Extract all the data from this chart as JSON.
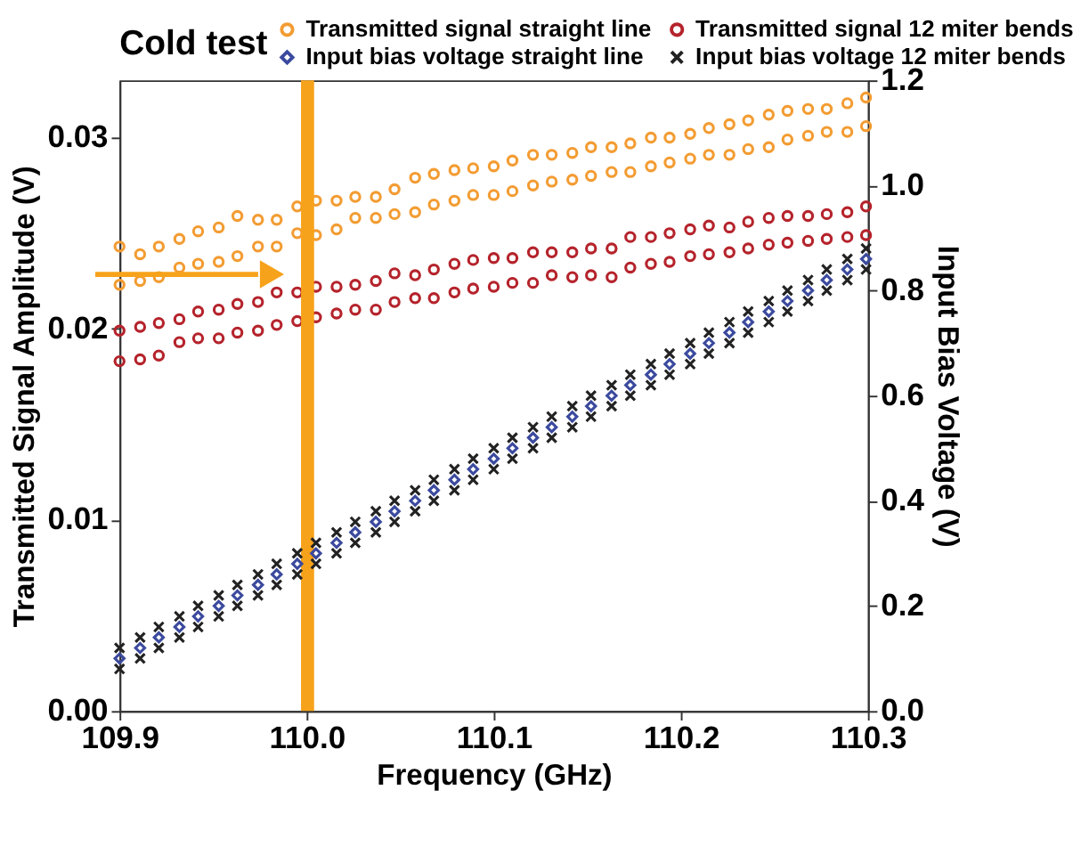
{
  "chart_data": {
    "type": "scatter",
    "xlabel": "Frequency (GHz)",
    "ylabel": "Transmitted Signal Amplitude (V)",
    "y2label": "Input Bias Voltage (V)",
    "legend_title": "Cold test",
    "xlim": [
      109.9,
      110.3
    ],
    "xticks": [
      109.9,
      {
        "value": 110.0,
        "label": "110.0"
      },
      110.1,
      110.2,
      110.3
    ],
    "ylim": [
      0,
      0.033
    ],
    "yticks": [
      {
        "value": 0,
        "label": "0.00"
      },
      0.01,
      0.02,
      0.03
    ],
    "y2lim": [
      0,
      1.2
    ],
    "y2ticks": [
      {
        "value": 0,
        "label": "0.0"
      },
      0.2,
      0.4,
      0.6,
      0.8,
      {
        "value": 1,
        "label": "1.0"
      },
      1.2
    ],
    "grid": false,
    "legend": "top",
    "bands": [
      {
        "axis": "x",
        "from": 109.997,
        "to": 110.004,
        "color": "#f7a21b"
      }
    ],
    "series": [
      {
        "name": "Transmitted signal straight line",
        "color": "#f39c32",
        "marker": "circle",
        "x": [
          109.9,
          109.911,
          109.921,
          109.932,
          109.942,
          109.953,
          109.963,
          109.974,
          109.984,
          109.995,
          110.005,
          110.016,
          110.026,
          110.037,
          110.047,
          110.058,
          110.068,
          110.079,
          110.089,
          110.1,
          110.11,
          110.121,
          110.131,
          110.142,
          110.152,
          110.163,
          110.173,
          110.184,
          110.194,
          110.205,
          110.215,
          110.226,
          110.236,
          110.247,
          110.257,
          110.268,
          110.278,
          110.289,
          110.299,
          109.9,
          109.911,
          109.921,
          109.932,
          109.942,
          109.953,
          109.963,
          109.974,
          109.984,
          109.995,
          110.005,
          110.016,
          110.026,
          110.037,
          110.047,
          110.058,
          110.068,
          110.079,
          110.089,
          110.1,
          110.11,
          110.121,
          110.131,
          110.142,
          110.152,
          110.163,
          110.173,
          110.184,
          110.194,
          110.205,
          110.215,
          110.226,
          110.236,
          110.247,
          110.257,
          110.268,
          110.278,
          110.289,
          110.299
        ],
        "values": [
          0.0243,
          0.0239,
          0.0243,
          0.0247,
          0.0251,
          0.0253,
          0.0259,
          0.0257,
          0.0257,
          0.0264,
          0.0267,
          0.0267,
          0.0269,
          0.0269,
          0.0273,
          0.0279,
          0.0281,
          0.0283,
          0.0284,
          0.0285,
          0.0288,
          0.0291,
          0.0291,
          0.0292,
          0.0295,
          0.0295,
          0.0297,
          0.03,
          0.03,
          0.0302,
          0.0305,
          0.0307,
          0.0309,
          0.0312,
          0.0314,
          0.0315,
          0.0315,
          0.0318,
          0.0321,
          0.0223,
          0.0225,
          0.0227,
          0.0232,
          0.0234,
          0.0235,
          0.0238,
          0.0243,
          0.0243,
          0.025,
          0.0249,
          0.0252,
          0.0258,
          0.0258,
          0.026,
          0.0261,
          0.0265,
          0.0267,
          0.027,
          0.027,
          0.0272,
          0.0275,
          0.0277,
          0.0278,
          0.028,
          0.0282,
          0.0282,
          0.0285,
          0.0287,
          0.0289,
          0.0291,
          0.0291,
          0.0294,
          0.0295,
          0.0299,
          0.0301,
          0.0303,
          0.0303,
          0.0306
        ]
      },
      {
        "name": "Transmitted signal 12 miter bends",
        "color": "#b5232b",
        "marker": "circle",
        "x": [
          109.9,
          109.911,
          109.921,
          109.932,
          109.942,
          109.953,
          109.963,
          109.974,
          109.984,
          109.995,
          110.005,
          110.016,
          110.026,
          110.037,
          110.047,
          110.058,
          110.068,
          110.079,
          110.089,
          110.1,
          110.11,
          110.121,
          110.131,
          110.142,
          110.152,
          110.163,
          110.173,
          110.184,
          110.194,
          110.205,
          110.215,
          110.226,
          110.236,
          110.247,
          110.257,
          110.268,
          110.278,
          110.289,
          110.299,
          109.9,
          109.911,
          109.921,
          109.932,
          109.942,
          109.953,
          109.963,
          109.974,
          109.984,
          109.995,
          110.005,
          110.016,
          110.026,
          110.037,
          110.047,
          110.058,
          110.068,
          110.079,
          110.089,
          110.1,
          110.11,
          110.121,
          110.131,
          110.142,
          110.152,
          110.163,
          110.173,
          110.184,
          110.194,
          110.205,
          110.215,
          110.226,
          110.236,
          110.247,
          110.257,
          110.268,
          110.278,
          110.289,
          110.299
        ],
        "values": [
          0.0199,
          0.0201,
          0.0203,
          0.0205,
          0.0209,
          0.021,
          0.0213,
          0.0214,
          0.0219,
          0.0219,
          0.0222,
          0.0222,
          0.0223,
          0.0225,
          0.0229,
          0.0228,
          0.0231,
          0.0234,
          0.0236,
          0.0237,
          0.0237,
          0.024,
          0.024,
          0.024,
          0.0242,
          0.0242,
          0.0248,
          0.0248,
          0.025,
          0.0252,
          0.0254,
          0.0253,
          0.0256,
          0.0258,
          0.0259,
          0.0259,
          0.026,
          0.0261,
          0.0264,
          0.0183,
          0.0184,
          0.0186,
          0.0193,
          0.0195,
          0.0195,
          0.0198,
          0.0199,
          0.0202,
          0.0204,
          0.0206,
          0.0208,
          0.021,
          0.021,
          0.0214,
          0.0216,
          0.0216,
          0.0219,
          0.0221,
          0.0222,
          0.0224,
          0.0224,
          0.0228,
          0.0227,
          0.0228,
          0.0227,
          0.0232,
          0.0234,
          0.0235,
          0.0238,
          0.0239,
          0.024,
          0.0242,
          0.0244,
          0.0245,
          0.0246,
          0.0247,
          0.0248,
          0.0249
        ]
      },
      {
        "name": "Input bias voltage straight line",
        "color": "#3b4a9e",
        "marker": "diamond",
        "axis": "y2",
        "x": [
          109.9,
          109.911,
          109.921,
          109.932,
          109.942,
          109.953,
          109.963,
          109.974,
          109.984,
          109.995,
          110.005,
          110.016,
          110.026,
          110.037,
          110.047,
          110.058,
          110.068,
          110.079,
          110.089,
          110.1,
          110.11,
          110.121,
          110.131,
          110.142,
          110.152,
          110.163,
          110.173,
          110.184,
          110.194,
          110.205,
          110.215,
          110.226,
          110.236,
          110.247,
          110.257,
          110.268,
          110.278,
          110.289,
          110.299
        ],
        "values": [
          0.1,
          0.12,
          0.14,
          0.16,
          0.18,
          0.2,
          0.22,
          0.24,
          0.26,
          0.28,
          0.3,
          0.32,
          0.34,
          0.36,
          0.38,
          0.4,
          0.42,
          0.44,
          0.46,
          0.48,
          0.5,
          0.52,
          0.54,
          0.56,
          0.58,
          0.6,
          0.62,
          0.64,
          0.66,
          0.68,
          0.7,
          0.72,
          0.74,
          0.76,
          0.78,
          0.8,
          0.82,
          0.84,
          0.86
        ]
      },
      {
        "name": "Input bias voltage 12 miter bends",
        "color": "#222222",
        "marker": "cross",
        "axis": "y2",
        "x": [
          109.9,
          109.911,
          109.921,
          109.932,
          109.942,
          109.953,
          109.963,
          109.974,
          109.984,
          109.995,
          110.005,
          110.016,
          110.026,
          110.037,
          110.047,
          110.058,
          110.068,
          110.079,
          110.089,
          110.1,
          110.11,
          110.121,
          110.131,
          110.142,
          110.152,
          110.163,
          110.173,
          110.184,
          110.194,
          110.205,
          110.215,
          110.226,
          110.236,
          110.247,
          110.257,
          110.268,
          110.278,
          110.289,
          110.299,
          109.9,
          109.911,
          109.921,
          109.932,
          109.942,
          109.953,
          109.963,
          109.974,
          109.984,
          109.995,
          110.005,
          110.016,
          110.026,
          110.037,
          110.047,
          110.058,
          110.068,
          110.079,
          110.089,
          110.1,
          110.11,
          110.121,
          110.131,
          110.142,
          110.152,
          110.163,
          110.173,
          110.184,
          110.194,
          110.205,
          110.215,
          110.226,
          110.236,
          110.247,
          110.257,
          110.268,
          110.278,
          110.289,
          110.299
        ],
        "values": [
          0.12,
          0.14,
          0.16,
          0.18,
          0.2,
          0.22,
          0.24,
          0.26,
          0.28,
          0.3,
          0.32,
          0.34,
          0.36,
          0.38,
          0.4,
          0.42,
          0.44,
          0.46,
          0.48,
          0.5,
          0.52,
          0.54,
          0.56,
          0.58,
          0.6,
          0.62,
          0.64,
          0.66,
          0.68,
          0.7,
          0.72,
          0.74,
          0.76,
          0.78,
          0.8,
          0.82,
          0.84,
          0.86,
          0.88,
          0.08,
          0.1,
          0.12,
          0.14,
          0.16,
          0.18,
          0.2,
          0.22,
          0.24,
          0.26,
          0.28,
          0.3,
          0.32,
          0.34,
          0.36,
          0.38,
          0.4,
          0.42,
          0.44,
          0.46,
          0.48,
          0.5,
          0.52,
          0.54,
          0.56,
          0.58,
          0.6,
          0.62,
          0.64,
          0.66,
          0.68,
          0.7,
          0.72,
          0.74,
          0.76,
          0.78,
          0.8,
          0.82,
          0.84
        ]
      }
    ]
  }
}
